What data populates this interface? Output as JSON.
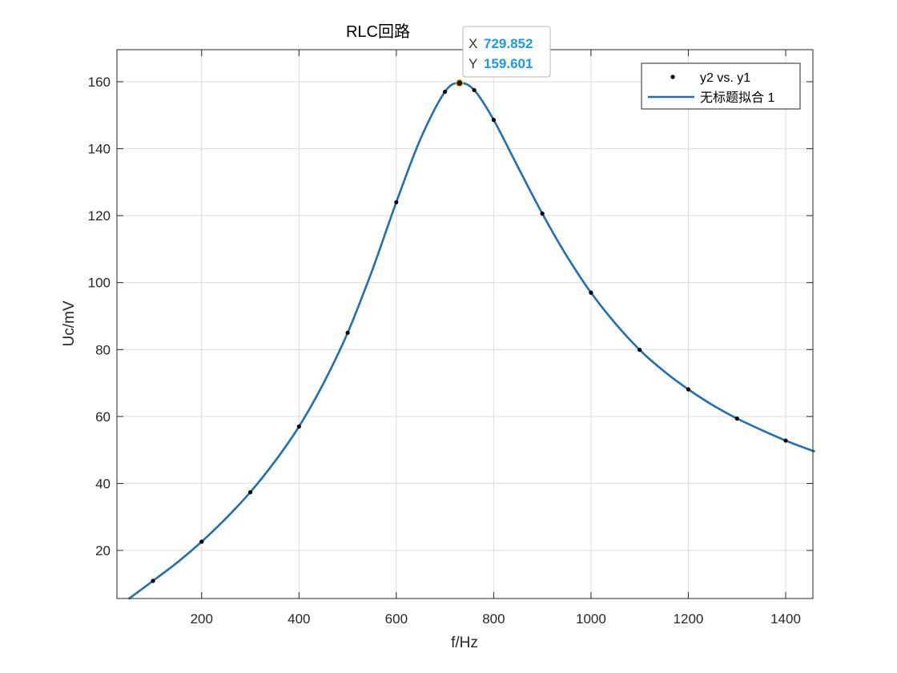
{
  "chart_data": {
    "type": "scatter",
    "title": "RLC回路",
    "xlabel": "f/Hz",
    "ylabel": "Uc/mV",
    "xlim": [
      50,
      1460
    ],
    "ylim": [
      5.5,
      169
    ],
    "xticks": [
      200,
      400,
      600,
      800,
      1000,
      1200,
      1400
    ],
    "yticks": [
      20,
      40,
      60,
      80,
      100,
      120,
      140,
      160
    ],
    "grid": true,
    "legend_position": "top-right",
    "colors": {
      "points": "#000000",
      "fit": "#1f6fb2",
      "datatip_value": "#1a9be6"
    },
    "series": [
      {
        "name": "y2 vs. y1",
        "kind": "points",
        "x": [
          100,
          200,
          300,
          400,
          500,
          600,
          700,
          730,
          760,
          800,
          900,
          1000,
          1100,
          1200,
          1300,
          1400
        ],
        "y": [
          10.9,
          22.6,
          37.4,
          57.0,
          85.0,
          124.0,
          157.0,
          159.6,
          157.5,
          148.6,
          120.6,
          97.0,
          79.9,
          68.1,
          59.4,
          52.8
        ]
      },
      {
        "name": "无标题拟合 1",
        "kind": "fit-line",
        "x": [
          50,
          100,
          150,
          200,
          250,
          300,
          350,
          400,
          450,
          500,
          550,
          600,
          650,
          700,
          730,
          760,
          800,
          850,
          900,
          950,
          1000,
          1050,
          1100,
          1150,
          1200,
          1250,
          1300,
          1350,
          1400,
          1460
        ],
        "y": [
          5.5,
          10.9,
          16.4,
          22.6,
          29.6,
          37.4,
          46.5,
          57.0,
          69.8,
          85.0,
          103.5,
          124.0,
          143.0,
          157.0,
          159.6,
          157.5,
          148.6,
          134.5,
          120.6,
          108.0,
          97.0,
          87.8,
          79.9,
          73.5,
          68.1,
          63.4,
          59.4,
          56.0,
          52.8,
          49.5
        ]
      }
    ],
    "datatip": {
      "x_label": "X",
      "x_value": "729.852",
      "y_label": "Y",
      "y_value": "159.601",
      "x": 729.852,
      "y": 159.601
    }
  }
}
